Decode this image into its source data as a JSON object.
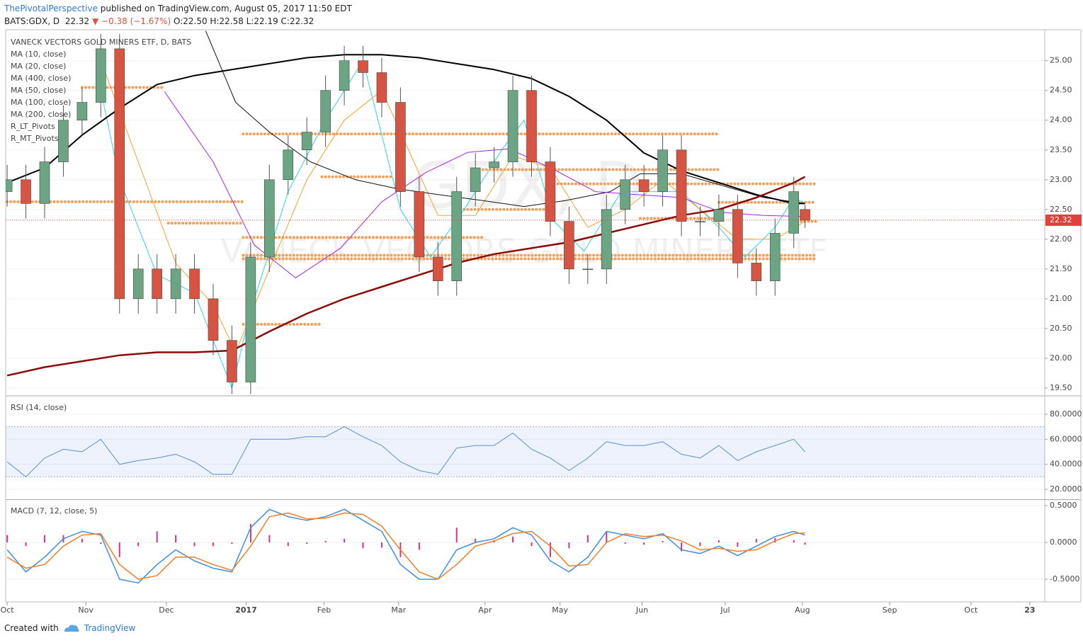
{
  "header": {
    "author": "ThePivotalPerspective",
    "published": "published on TradingView.com, August 05, 2017 11:50 EDT",
    "symbol": "BATS:GDX, D",
    "last": "22.32",
    "change": "▼ −0.38 (−1.67%)",
    "ohlc": "O:22.50 H:22.58 L:22.19 C:22.32"
  },
  "footer": {
    "created": "Created with",
    "brand": "TradingView"
  },
  "chart_data": [
    {
      "type": "candlestick",
      "title": "VANECK VECTORS GOLD MINERS ETF, D, BATS",
      "watermark_symbol": "GDX, D",
      "watermark_name": "VANECK VECTORS GOLD MINERS ETF",
      "x": [
        0,
        5,
        10,
        15,
        20,
        25,
        30,
        35,
        40,
        45,
        50,
        55,
        60,
        65,
        70,
        75,
        80,
        85,
        90,
        95,
        100,
        105,
        110,
        115,
        120,
        125,
        130,
        135,
        140,
        145,
        150,
        155,
        160,
        165,
        170,
        175,
        180,
        185,
        190,
        195,
        200,
        205,
        210,
        213
      ],
      "open": [
        22.8,
        23.0,
        22.6,
        23.3,
        24.0,
        24.3,
        25.2,
        21.0,
        21.5,
        21.0,
        21.5,
        21.0,
        20.3,
        19.6,
        21.7,
        23.0,
        23.5,
        23.8,
        24.5,
        25.0,
        24.8,
        24.3,
        22.8,
        21.7,
        21.3,
        22.8,
        23.2,
        23.3,
        24.5,
        23.3,
        22.3,
        21.5,
        21.5,
        22.5,
        23.0,
        22.8,
        23.5,
        22.3,
        22.3,
        22.5,
        21.6,
        21.3,
        22.1,
        22.5
      ],
      "high": [
        23.25,
        23.25,
        23.55,
        24.25,
        24.55,
        25.45,
        25.45,
        21.75,
        21.75,
        21.75,
        21.75,
        21.25,
        20.55,
        21.95,
        23.25,
        23.75,
        24.05,
        24.75,
        25.25,
        25.25,
        25.05,
        24.55,
        23.05,
        21.95,
        23.05,
        23.45,
        23.55,
        24.75,
        24.75,
        23.55,
        22.55,
        21.75,
        22.75,
        23.25,
        23.25,
        23.75,
        23.75,
        22.55,
        22.75,
        22.75,
        21.85,
        22.35,
        23.05,
        22.58
      ],
      "low": [
        22.55,
        22.35,
        22.35,
        23.05,
        23.75,
        24.05,
        20.75,
        20.75,
        20.75,
        20.75,
        20.75,
        20.05,
        19.4,
        19.4,
        21.45,
        22.75,
        23.25,
        23.55,
        24.25,
        24.55,
        24.05,
        22.55,
        21.45,
        21.05,
        21.05,
        22.55,
        22.95,
        23.05,
        23.05,
        22.05,
        21.25,
        21.25,
        21.25,
        22.25,
        22.55,
        22.55,
        22.05,
        22.05,
        22.05,
        21.35,
        21.05,
        21.05,
        21.85,
        22.19
      ],
      "close": [
        23.0,
        22.6,
        23.3,
        24.0,
        24.3,
        25.2,
        21.0,
        21.5,
        21.0,
        21.5,
        21.0,
        20.3,
        19.6,
        21.7,
        23.0,
        23.5,
        23.8,
        24.5,
        25.0,
        24.8,
        24.3,
        22.8,
        21.7,
        21.3,
        22.8,
        23.2,
        23.3,
        24.5,
        23.3,
        22.3,
        21.5,
        21.5,
        22.5,
        23.0,
        22.8,
        23.5,
        22.3,
        22.3,
        22.5,
        21.6,
        21.3,
        22.1,
        22.8,
        22.32
      ],
      "up_color": "#6ba583",
      "down_color": "#d75442",
      "last_color": "#e0413c",
      "series": [
        {
          "name": "MA (10, close)",
          "color": "#32d3e6",
          "width": 1,
          "x": [
            25,
            30,
            40,
            50,
            60,
            65,
            75,
            85,
            95,
            105,
            113,
            122,
            132,
            138,
            146,
            154,
            164,
            172,
            180,
            190,
            197,
            205,
            210,
            213
          ],
          "values": [
            24.5,
            23.0,
            21.4,
            21.1,
            19.5,
            20.8,
            22.8,
            24.0,
            25.0,
            22.5,
            21.7,
            22.5,
            23.5,
            24.0,
            22.3,
            21.8,
            22.8,
            22.8,
            22.8,
            22.2,
            21.7,
            22.2,
            22.7,
            22.6
          ]
        },
        {
          "name": "MA (20, close)",
          "color": "#f7a035",
          "width": 1,
          "x": [
            25,
            35,
            45,
            55,
            61,
            70,
            80,
            90,
            100,
            105,
            115,
            125,
            135,
            145,
            155,
            165,
            175,
            185,
            195,
            205,
            213
          ],
          "values": [
            25.0,
            23.3,
            21.6,
            20.9,
            20.1,
            21.5,
            23.0,
            24.0,
            24.5,
            23.8,
            22.4,
            22.4,
            23.4,
            23.2,
            22.2,
            22.5,
            23.0,
            22.5,
            22.0,
            22.0,
            22.3
          ]
        },
        {
          "name": "MA (400, close)",
          "color": "#111111",
          "width": 1,
          "x": [
            53,
            61,
            70,
            81,
            93,
            104,
            115,
            127,
            138,
            149,
            161,
            169,
            180,
            191,
            202,
            213
          ],
          "values": [
            25.5,
            24.3,
            23.8,
            23.3,
            23.0,
            22.85,
            22.75,
            22.65,
            22.55,
            22.65,
            22.8,
            23.1,
            23.1,
            22.9,
            22.7,
            22.6
          ]
        },
        {
          "name": "MA (50, close)",
          "color": "#9c27e0",
          "width": 1,
          "x": [
            42,
            55,
            66,
            77,
            89,
            100,
            112,
            123,
            134,
            146,
            157,
            168,
            180,
            191,
            202,
            214
          ],
          "values": [
            24.48,
            23.3,
            21.9,
            21.35,
            21.85,
            22.63,
            23.13,
            23.46,
            23.52,
            23.17,
            22.8,
            22.75,
            22.7,
            22.45,
            22.4,
            22.38
          ]
        },
        {
          "name": "MA (100, close)",
          "color": "#000000",
          "width": 2,
          "x": [
            0,
            10,
            20,
            30,
            40,
            50,
            60,
            70,
            80,
            90,
            100,
            110,
            120,
            130,
            140,
            150,
            160,
            170,
            180,
            190,
            200,
            210,
            213
          ],
          "values": [
            22.95,
            23.2,
            23.75,
            24.2,
            24.6,
            24.75,
            24.85,
            24.95,
            25.05,
            25.1,
            25.1,
            25.05,
            24.95,
            24.85,
            24.7,
            24.4,
            24.0,
            23.45,
            23.15,
            22.95,
            22.75,
            22.6,
            22.6
          ]
        },
        {
          "name": "MA (200, close)",
          "color": "#8b0a0a",
          "width": 2.5,
          "x": [
            0,
            10,
            20,
            30,
            40,
            50,
            60,
            70,
            80,
            90,
            100,
            110,
            120,
            130,
            140,
            150,
            160,
            170,
            180,
            190,
            200,
            210,
            213
          ],
          "values": [
            19.71,
            19.85,
            19.95,
            20.05,
            20.1,
            20.1,
            20.13,
            20.45,
            20.75,
            21.0,
            21.2,
            21.4,
            21.6,
            21.75,
            21.85,
            21.95,
            22.1,
            22.25,
            22.4,
            22.5,
            22.7,
            22.95,
            23.05
          ]
        }
      ],
      "pivots": [
        {
          "name": "R_LT_Pivots",
          "color": "#f5a05a",
          "levels": [
            {
              "from": 0,
              "to": 63,
              "value": 22.63
            },
            {
              "from": 63,
              "to": 190,
              "value": 23.77
            },
            {
              "from": 63,
              "to": 216,
              "value": 21.73
            },
            {
              "from": 63,
              "to": 216,
              "value": 21.67
            },
            {
              "from": 127,
              "to": 190,
              "value": 23.17
            }
          ]
        },
        {
          "name": "R_MT_Pivots",
          "color": "#f5a05a",
          "levels": [
            {
              "from": 20,
              "to": 42,
              "value": 24.55
            },
            {
              "from": 43,
              "to": 63,
              "value": 22.27
            },
            {
              "from": 63,
              "to": 127,
              "value": 22.03
            },
            {
              "from": 63,
              "to": 84,
              "value": 20.57
            },
            {
              "from": 84,
              "to": 103,
              "value": 23.05
            },
            {
              "from": 121,
              "to": 146,
              "value": 22.5
            },
            {
              "from": 146,
              "to": 216,
              "value": 22.93
            },
            {
              "from": 169,
              "to": 190,
              "value": 22.35
            },
            {
              "from": 190,
              "to": 216,
              "value": 22.62
            },
            {
              "from": 210,
              "to": 216,
              "value": 22.3
            }
          ]
        }
      ],
      "xlim": [
        -0.4,
        277
      ],
      "ylim": [
        19.38,
        25.52
      ],
      "yticks": [
        {
          "value": 19.5,
          "label": "19.50"
        },
        {
          "value": 20,
          "label": "20.00"
        },
        {
          "value": 20.5,
          "label": "20.50"
        },
        {
          "value": 21,
          "label": "21.00"
        },
        {
          "value": 21.5,
          "label": "21.50"
        },
        {
          "value": 22,
          "label": "22.00"
        },
        {
          "value": 22.5,
          "label": "22.50"
        },
        {
          "value": 23,
          "label": "23.00"
        },
        {
          "value": 23.5,
          "label": "23.50"
        },
        {
          "value": 24,
          "label": "24.00"
        },
        {
          "value": 24.5,
          "label": "24.50"
        },
        {
          "value": 25,
          "label": "25.00"
        }
      ],
      "grid": true
    },
    {
      "type": "line",
      "title": "RSI (14, close)",
      "x": [
        0,
        5,
        10,
        15,
        20,
        25,
        30,
        35,
        40,
        45,
        50,
        55,
        60,
        65,
        70,
        75,
        80,
        85,
        90,
        95,
        100,
        105,
        110,
        115,
        120,
        125,
        130,
        135,
        140,
        145,
        150,
        155,
        160,
        165,
        170,
        175,
        180,
        185,
        190,
        195,
        200,
        205,
        210,
        213
      ],
      "series": [
        {
          "color": "#5b8fd6",
          "values": [
            42,
            30,
            45,
            52,
            50,
            60,
            40,
            43,
            45,
            48,
            42,
            32,
            32,
            60,
            60,
            60,
            62,
            62,
            70,
            62,
            55,
            42,
            35,
            32,
            53,
            55,
            55,
            65,
            52,
            45,
            35,
            45,
            58,
            55,
            55,
            58,
            48,
            45,
            55,
            43,
            50,
            55,
            60,
            50
          ]
        }
      ],
      "band": [
        30,
        70
      ],
      "band_color": "rgba(60,110,230,0.09)",
      "xlim": [
        -0.4,
        277
      ],
      "ylim": [
        12.1,
        94.1
      ],
      "yticks": [
        {
          "value": 20,
          "label": "20.0000"
        },
        {
          "value": 40,
          "label": "40.0000"
        },
        {
          "value": 60,
          "label": "60.0000"
        },
        {
          "value": 80,
          "label": "80.0000"
        }
      ],
      "grid": true
    },
    {
      "type": "macd",
      "title": "MACD (7, 12, close, 5)",
      "x": [
        0,
        5,
        10,
        15,
        20,
        25,
        30,
        35,
        40,
        45,
        50,
        55,
        60,
        65,
        70,
        75,
        80,
        85,
        90,
        95,
        100,
        105,
        110,
        115,
        120,
        125,
        130,
        135,
        140,
        145,
        150,
        155,
        160,
        165,
        170,
        175,
        180,
        185,
        190,
        195,
        200,
        205,
        210,
        213
      ],
      "series": [
        {
          "color": "#3d8fe0",
          "values": [
            -0.1,
            -0.4,
            -0.2,
            0.05,
            0.15,
            0.1,
            -0.5,
            -0.55,
            -0.3,
            -0.1,
            -0.25,
            -0.35,
            -0.4,
            0.2,
            0.45,
            0.35,
            0.3,
            0.35,
            0.45,
            0.3,
            0.15,
            -0.3,
            -0.5,
            -0.5,
            -0.1,
            0.0,
            0.05,
            0.2,
            0.1,
            -0.25,
            -0.4,
            -0.2,
            0.15,
            0.1,
            0.05,
            0.12,
            -0.1,
            -0.15,
            -0.05,
            -0.18,
            -0.05,
            0.08,
            0.15,
            0.1
          ]
        },
        {
          "color": "#f07f2a",
          "values": [
            -0.2,
            -0.35,
            -0.3,
            -0.05,
            0.1,
            0.12,
            -0.3,
            -0.5,
            -0.45,
            -0.2,
            -0.2,
            -0.3,
            -0.38,
            -0.05,
            0.35,
            0.4,
            0.32,
            0.33,
            0.4,
            0.38,
            0.22,
            -0.1,
            -0.4,
            -0.5,
            -0.3,
            -0.05,
            0.02,
            0.12,
            0.15,
            -0.05,
            -0.32,
            -0.3,
            0.0,
            0.12,
            0.08,
            0.1,
            0.02,
            -0.1,
            -0.08,
            -0.12,
            -0.1,
            0.02,
            0.12,
            0.13
          ]
        }
      ],
      "histogram": {
        "color": "#d0348c",
        "values": [
          0.1,
          -0.05,
          0.1,
          0.1,
          0.05,
          -0.02,
          -0.2,
          -0.05,
          0.15,
          0.1,
          -0.05,
          -0.05,
          -0.02,
          0.25,
          0.1,
          -0.05,
          -0.02,
          0.02,
          0.05,
          -0.08,
          -0.07,
          -0.2,
          -0.1,
          0,
          0.2,
          0.05,
          0.03,
          0.08,
          -0.05,
          -0.2,
          -0.08,
          0.1,
          0.15,
          -0.02,
          -0.03,
          0.02,
          -0.12,
          -0.05,
          0.03,
          -0.06,
          0.05,
          0.06,
          0.03,
          -0.03
        ]
      },
      "xlim": [
        -0.4,
        277
      ],
      "ylim": [
        -0.808,
        0.577
      ],
      "yticks": [
        {
          "value": -0.5,
          "label": "-0.5000"
        },
        {
          "value": 0,
          "label": "0.0000"
        },
        {
          "value": 0.5,
          "label": "0.5000"
        }
      ],
      "xticks": [
        {
          "value": 0,
          "label": "Oct"
        },
        {
          "value": 21,
          "label": "Nov"
        },
        {
          "value": 42.5,
          "label": "Dec"
        },
        {
          "value": 63.8,
          "label": "2017"
        },
        {
          "value": 84.6,
          "label": "Feb"
        },
        {
          "value": 104.5,
          "label": "Mar"
        },
        {
          "value": 127.6,
          "label": "Apr"
        },
        {
          "value": 147.6,
          "label": "May"
        },
        {
          "value": 169.5,
          "label": "Jun"
        },
        {
          "value": 191.7,
          "label": "Jul"
        },
        {
          "value": 212.3,
          "label": "Aug"
        },
        {
          "value": 235.6,
          "label": "Sep"
        },
        {
          "value": 257.3,
          "label": "Oct"
        },
        {
          "value": 273,
          "label": "23"
        }
      ],
      "grid": true
    }
  ]
}
